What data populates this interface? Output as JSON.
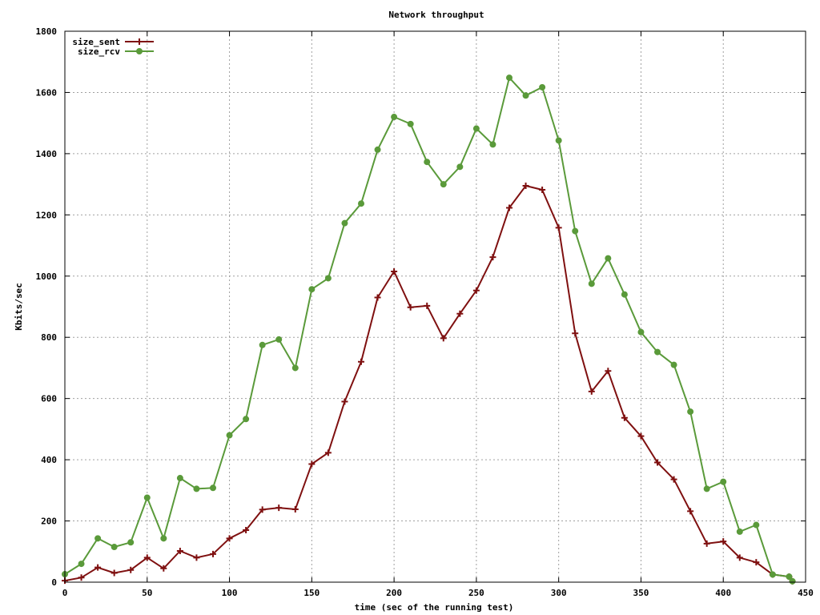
{
  "chart_data": {
    "type": "line",
    "title": "Network throughput",
    "xlabel": "time (sec of the running test)",
    "ylabel": "Kbits/sec",
    "xlim": [
      0,
      450
    ],
    "ylim": [
      0,
      1800
    ],
    "xticks": [
      0,
      50,
      100,
      150,
      200,
      250,
      300,
      350,
      400,
      450
    ],
    "yticks": [
      0,
      200,
      400,
      600,
      800,
      1000,
      1200,
      1400,
      1600,
      1800
    ],
    "grid": true,
    "legend_position": "top-left",
    "series": [
      {
        "name": "size_sent",
        "color": "#7f1010",
        "marker": "plus",
        "x": [
          0,
          10,
          20,
          30,
          40,
          50,
          60,
          70,
          80,
          90,
          100,
          110,
          120,
          130,
          140,
          150,
          160,
          170,
          180,
          190,
          200,
          210,
          220,
          230,
          240,
          250,
          260,
          270,
          280,
          290,
          300,
          310,
          320,
          330,
          340,
          350,
          360,
          370,
          380,
          390,
          400,
          410,
          420,
          430,
          440,
          442
        ],
        "values": [
          5,
          15,
          48,
          30,
          40,
          80,
          45,
          102,
          80,
          92,
          143,
          170,
          237,
          243,
          238,
          386,
          423,
          590,
          720,
          930,
          1015,
          898,
          903,
          797,
          877,
          953,
          1062,
          1223,
          1295,
          1282,
          1158,
          813,
          623,
          690,
          537,
          477,
          391,
          336,
          232,
          126,
          133,
          80,
          65,
          25,
          18,
          3
        ]
      },
      {
        "name": "size_rcv",
        "color": "#5a9a3a",
        "marker": "circle",
        "x": [
          0,
          10,
          20,
          30,
          40,
          50,
          60,
          70,
          80,
          90,
          100,
          110,
          120,
          130,
          140,
          150,
          160,
          170,
          180,
          190,
          200,
          210,
          220,
          230,
          240,
          250,
          260,
          270,
          280,
          290,
          300,
          310,
          320,
          330,
          340,
          350,
          360,
          370,
          380,
          390,
          400,
          410,
          420,
          430,
          440,
          442
        ],
        "values": [
          26,
          60,
          143,
          115,
          130,
          276,
          143,
          340,
          305,
          308,
          480,
          533,
          775,
          793,
          700,
          957,
          993,
          1173,
          1237,
          1413,
          1520,
          1497,
          1373,
          1300,
          1357,
          1482,
          1430,
          1648,
          1590,
          1617,
          1443,
          1147,
          975,
          1058,
          940,
          817,
          752,
          710,
          557,
          305,
          328,
          165,
          187,
          25,
          18,
          3
        ]
      }
    ]
  }
}
